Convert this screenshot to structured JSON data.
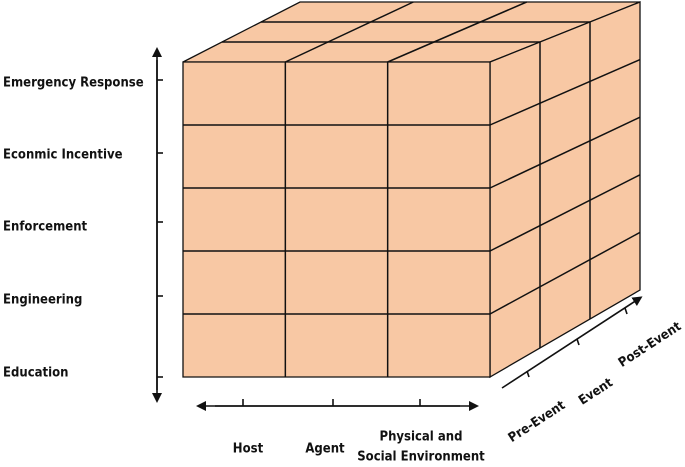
{
  "y_axis": {
    "labels": [
      "Emergency Response",
      "Econmic Incentive",
      "Enforcement",
      "Engineering",
      "Education"
    ]
  },
  "x_axis": {
    "labels": [
      "Host",
      "Agent",
      [
        "Physical and",
        "Social Environment"
      ]
    ]
  },
  "z_axis": {
    "labels": [
      "Pre-Event",
      "Event",
      "Post-Event"
    ]
  }
}
